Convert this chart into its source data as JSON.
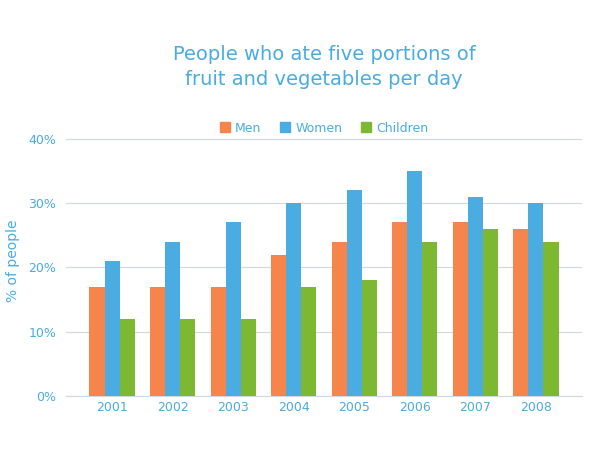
{
  "title": "People who ate five portions of\nfruit and vegetables per day",
  "ylabel": "% of people",
  "years": [
    2001,
    2002,
    2003,
    2004,
    2005,
    2006,
    2007,
    2008
  ],
  "men": [
    17,
    17,
    17,
    22,
    24,
    27,
    27,
    26
  ],
  "women": [
    21,
    24,
    27,
    30,
    32,
    35,
    31,
    30
  ],
  "children": [
    12,
    12,
    12,
    17,
    18,
    24,
    26,
    24
  ],
  "men_color": "#F5854A",
  "women_color": "#4AACE0",
  "children_color": "#7DB832",
  "title_color": "#4AACE0",
  "ylabel_color": "#4AACE0",
  "tick_color": "#4AACE0",
  "grid_color": "#d0d8e0",
  "background_color": "#ffffff",
  "ylim": [
    0,
    42
  ],
  "yticks": [
    0,
    10,
    20,
    30,
    40
  ],
  "ytick_labels": [
    "0%",
    "10%",
    "20%",
    "30%",
    "40%"
  ],
  "bar_width": 0.25,
  "legend_labels": [
    "Men",
    "Women",
    "Children"
  ],
  "title_fontsize": 14,
  "label_fontsize": 10,
  "tick_fontsize": 9,
  "legend_fontsize": 9
}
